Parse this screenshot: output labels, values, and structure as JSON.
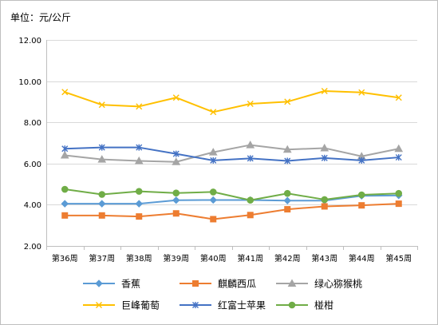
{
  "chart_data": {
    "type": "line",
    "unit_label": "单位：元/公斤",
    "categories": [
      "第36周",
      "第37周",
      "第38周",
      "第39周",
      "第40周",
      "第41周",
      "第42周",
      "第43周",
      "第44周",
      "第45周"
    ],
    "y_ticks": [
      "2.00",
      "4.00",
      "6.00",
      "8.00",
      "10.00",
      "12.00"
    ],
    "ylim": [
      2,
      12
    ],
    "grid": true,
    "legend_position": "bottom",
    "series": [
      {
        "name": "香蕉",
        "color": "#5b9bd5",
        "marker": "diamond",
        "values": [
          4.05,
          4.05,
          4.05,
          4.22,
          4.23,
          4.23,
          4.2,
          4.2,
          4.43,
          4.45
        ]
      },
      {
        "name": "麒麟西瓜",
        "color": "#ed7d31",
        "marker": "square",
        "values": [
          3.48,
          3.48,
          3.43,
          3.58,
          3.3,
          3.5,
          3.78,
          3.92,
          3.97,
          4.05
        ]
      },
      {
        "name": "绿心猕猴桃",
        "color": "#a5a5a5",
        "marker": "triangle",
        "values": [
          6.4,
          6.2,
          6.13,
          6.08,
          6.55,
          6.9,
          6.68,
          6.75,
          6.35,
          6.72
        ]
      },
      {
        "name": "巨峰葡萄",
        "color": "#ffc000",
        "marker": "x",
        "values": [
          9.47,
          8.85,
          8.77,
          9.2,
          8.5,
          8.9,
          9.0,
          9.52,
          9.45,
          9.2
        ]
      },
      {
        "name": "红富士苹果",
        "color": "#4472c4",
        "marker": "star",
        "values": [
          6.72,
          6.78,
          6.78,
          6.47,
          6.15,
          6.25,
          6.13,
          6.27,
          6.15,
          6.3
        ]
      },
      {
        "name": "椪柑",
        "color": "#70ad47",
        "marker": "circle",
        "values": [
          4.75,
          4.5,
          4.65,
          4.57,
          4.62,
          4.22,
          4.55,
          4.25,
          4.48,
          4.55
        ]
      }
    ]
  }
}
